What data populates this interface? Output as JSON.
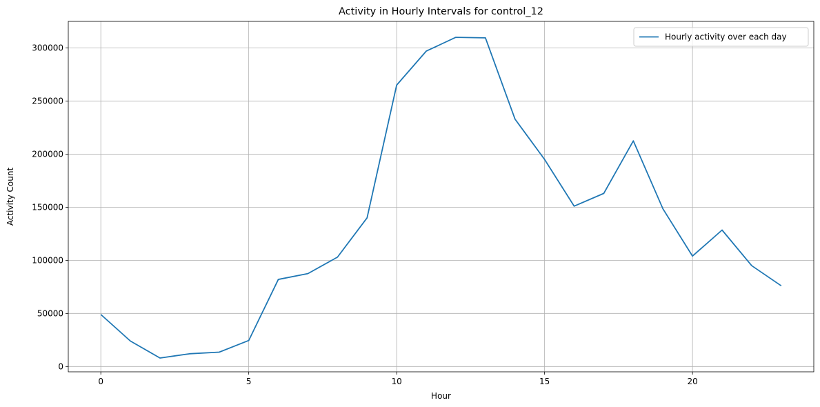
{
  "chart_data": {
    "type": "line",
    "title": "Activity in Hourly Intervals for control_12",
    "xlabel": "Hour",
    "ylabel": "Activity Count",
    "xlim": [
      -1.1,
      24.1
    ],
    "ylim": [
      -5000,
      325000
    ],
    "x_ticks": [
      0,
      5,
      10,
      15,
      20
    ],
    "y_ticks": [
      0,
      50000,
      100000,
      150000,
      200000,
      250000,
      300000
    ],
    "grid": true,
    "legend_position": "top-right",
    "series": [
      {
        "name": "Hourly activity over each day",
        "color": "#1f77b4",
        "x": [
          0,
          1,
          2,
          3,
          4,
          5,
          6,
          7,
          8,
          9,
          10,
          11,
          12,
          13,
          14,
          15,
          16,
          17,
          18,
          19,
          20,
          21,
          22,
          23
        ],
        "values": [
          49000,
          24000,
          8000,
          12000,
          13500,
          24500,
          82000,
          87500,
          103000,
          140000,
          265000,
          297000,
          310000,
          309500,
          233000,
          195000,
          151000,
          163000,
          212500,
          148500,
          104000,
          128500,
          95000,
          76000
        ]
      }
    ]
  }
}
